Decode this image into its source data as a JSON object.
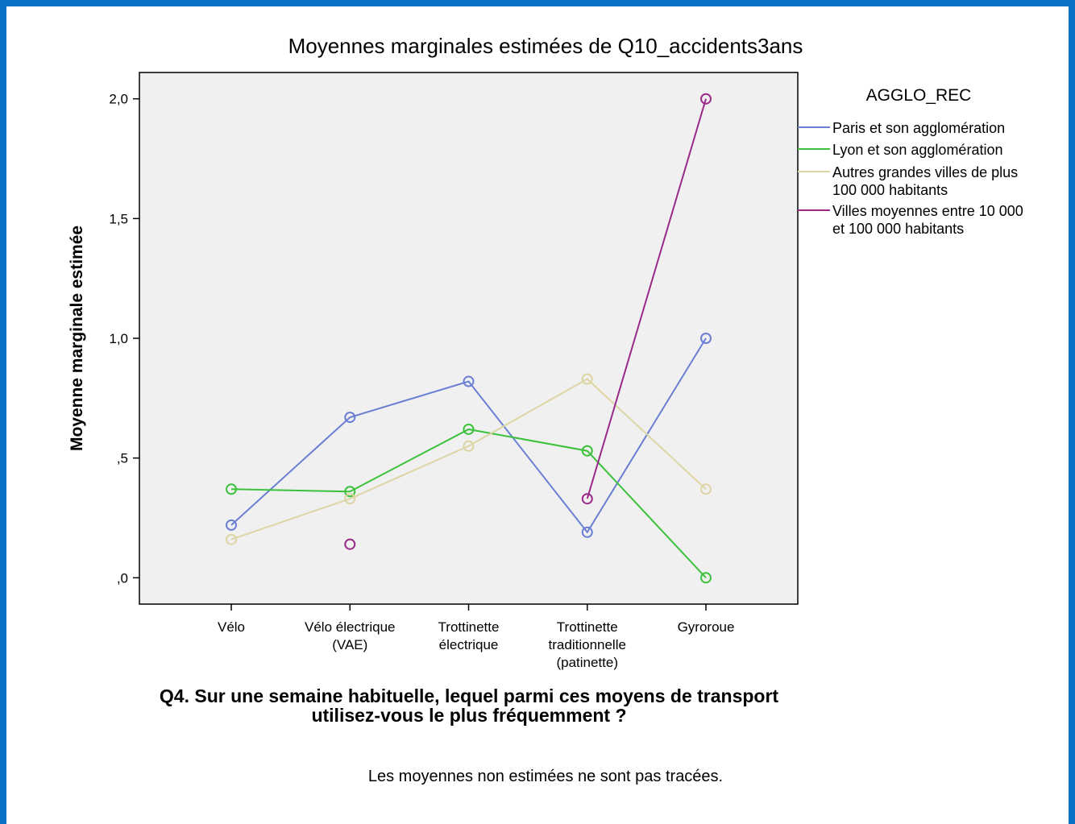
{
  "chart_data": {
    "type": "line",
    "title": "Moyennes marginales estimées de Q10_accidents3ans",
    "y_label": "Moyenne marginale estimée",
    "x_label": "Q4. Sur une semaine habituelle, lequel parmi ces moyens de transport utilisez-vous le plus fréquemment ?",
    "note": "Les moyennes non estimées ne sont pas tracées.",
    "legend_title": "AGGLO_REC",
    "legend": "right",
    "categories": [
      "Vélo",
      "Vélo électrique (VAE)",
      "Trottinette électrique",
      "Trottinette traditionnelle (patinette)",
      "Gyroroue"
    ],
    "series": [
      {
        "name": "Paris et son agglomération",
        "color": "#6a7fd4",
        "values": [
          0.22,
          0.67,
          0.82,
          0.19,
          1.0
        ]
      },
      {
        "name": "Lyon et son agglomération",
        "color": "#3cc13c",
        "values": [
          0.37,
          0.36,
          0.62,
          0.53,
          0.0
        ]
      },
      {
        "name": "Autres grandes villes de plus 100 000 habitants",
        "color": "#ddd5a3",
        "values": [
          0.16,
          0.33,
          0.55,
          0.83,
          0.37
        ]
      },
      {
        "name": "Villes moyennes entre 10 000 et 100 000 habitants",
        "color": "#9a2a8a",
        "values": [
          null,
          0.14,
          null,
          0.33,
          2.0
        ]
      }
    ],
    "ylim": [
      -0.11,
      2.11
    ],
    "yticks": [
      {
        "value": 0,
        "label": ",0"
      },
      {
        "value": 0.5,
        "label": ",5"
      },
      {
        "value": 1,
        "label": "1,0"
      },
      {
        "value": 1.5,
        "label": "1,5"
      },
      {
        "value": 2,
        "label": "2,0"
      }
    ]
  }
}
